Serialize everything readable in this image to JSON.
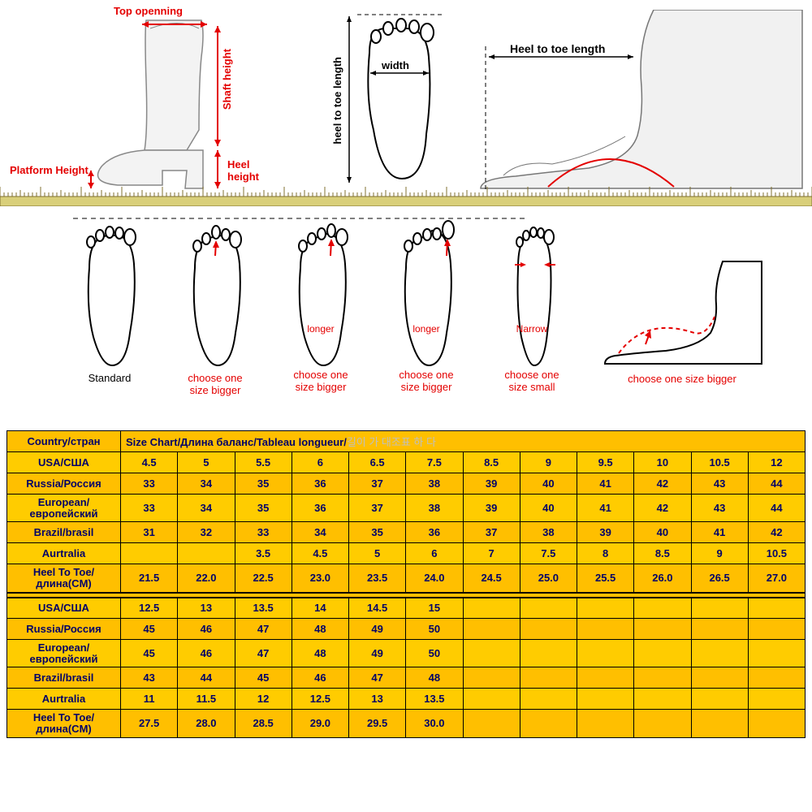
{
  "diagram": {
    "labels": {
      "top_openning": "Top openning",
      "shaft_height": "Shaft height",
      "heel_height": "Heel height",
      "platform_height": "Platform Height",
      "heel_to_toe_length_v": "heel to toe length",
      "width": "width",
      "heel_to_toe_length_h": "Heel to toe length"
    },
    "colors": {
      "red": "#e40000",
      "black": "#000000",
      "bg": "#ffffff"
    }
  },
  "foot_types": {
    "standard": "Standard",
    "choose_bigger": "choose one\nsize bigger",
    "choose_small": "choose one\nsize small",
    "choose_bigger_side": "choose one size bigger",
    "longer": "longer",
    "narrow": "Narrow"
  },
  "table": {
    "bg": "#ffbf00",
    "bg2": "#ffcc00",
    "header_label": "Country/стран",
    "header_value_dark": "Size Chart/Длина баланс/Tableau longueur/",
    "header_value_grey": "길이 가 대조표 하 다",
    "row_labels": [
      "USA/США",
      "Russia/Россия",
      "European/европейский",
      "Brazil/brasil",
      "Aurtralia",
      "Heel To Toe/длина(CM)"
    ],
    "block1": {
      "usa": [
        "4.5",
        "5",
        "5.5",
        "6",
        "6.5",
        "7.5",
        "8.5",
        "9",
        "9.5",
        "10",
        "10.5",
        "12"
      ],
      "russia": [
        "33",
        "34",
        "35",
        "36",
        "37",
        "38",
        "39",
        "40",
        "41",
        "42",
        "43",
        "44"
      ],
      "european": [
        "33",
        "34",
        "35",
        "36",
        "37",
        "38",
        "39",
        "40",
        "41",
        "42",
        "43",
        "44"
      ],
      "brazil": [
        "31",
        "32",
        "33",
        "34",
        "35",
        "36",
        "37",
        "38",
        "39",
        "40",
        "41",
        "42"
      ],
      "australia": [
        "",
        "",
        "3.5",
        "4.5",
        "5",
        "6",
        "7",
        "7.5",
        "8",
        "8.5",
        "9",
        "10.5"
      ],
      "heel": [
        "21.5",
        "22.0",
        "22.5",
        "23.0",
        "23.5",
        "24.0",
        "24.5",
        "25.0",
        "25.5",
        "26.0",
        "26.5",
        "27.0"
      ]
    },
    "block2": {
      "usa": [
        "12.5",
        "13",
        "13.5",
        "14",
        "14.5",
        "15",
        "",
        "",
        "",
        "",
        "",
        ""
      ],
      "russia": [
        "45",
        "46",
        "47",
        "48",
        "49",
        "50",
        "",
        "",
        "",
        "",
        "",
        ""
      ],
      "european": [
        "45",
        "46",
        "47",
        "48",
        "49",
        "50",
        "",
        "",
        "",
        "",
        "",
        ""
      ],
      "brazil": [
        "43",
        "44",
        "45",
        "46",
        "47",
        "48",
        "",
        "",
        "",
        "",
        "",
        ""
      ],
      "australia": [
        "11",
        "11.5",
        "12",
        "12.5",
        "13",
        "13.5",
        "",
        "",
        "",
        "",
        "",
        ""
      ],
      "heel": [
        "27.5",
        "28.0",
        "28.5",
        "29.0",
        "29.5",
        "30.0",
        "",
        "",
        "",
        "",
        "",
        ""
      ]
    }
  }
}
